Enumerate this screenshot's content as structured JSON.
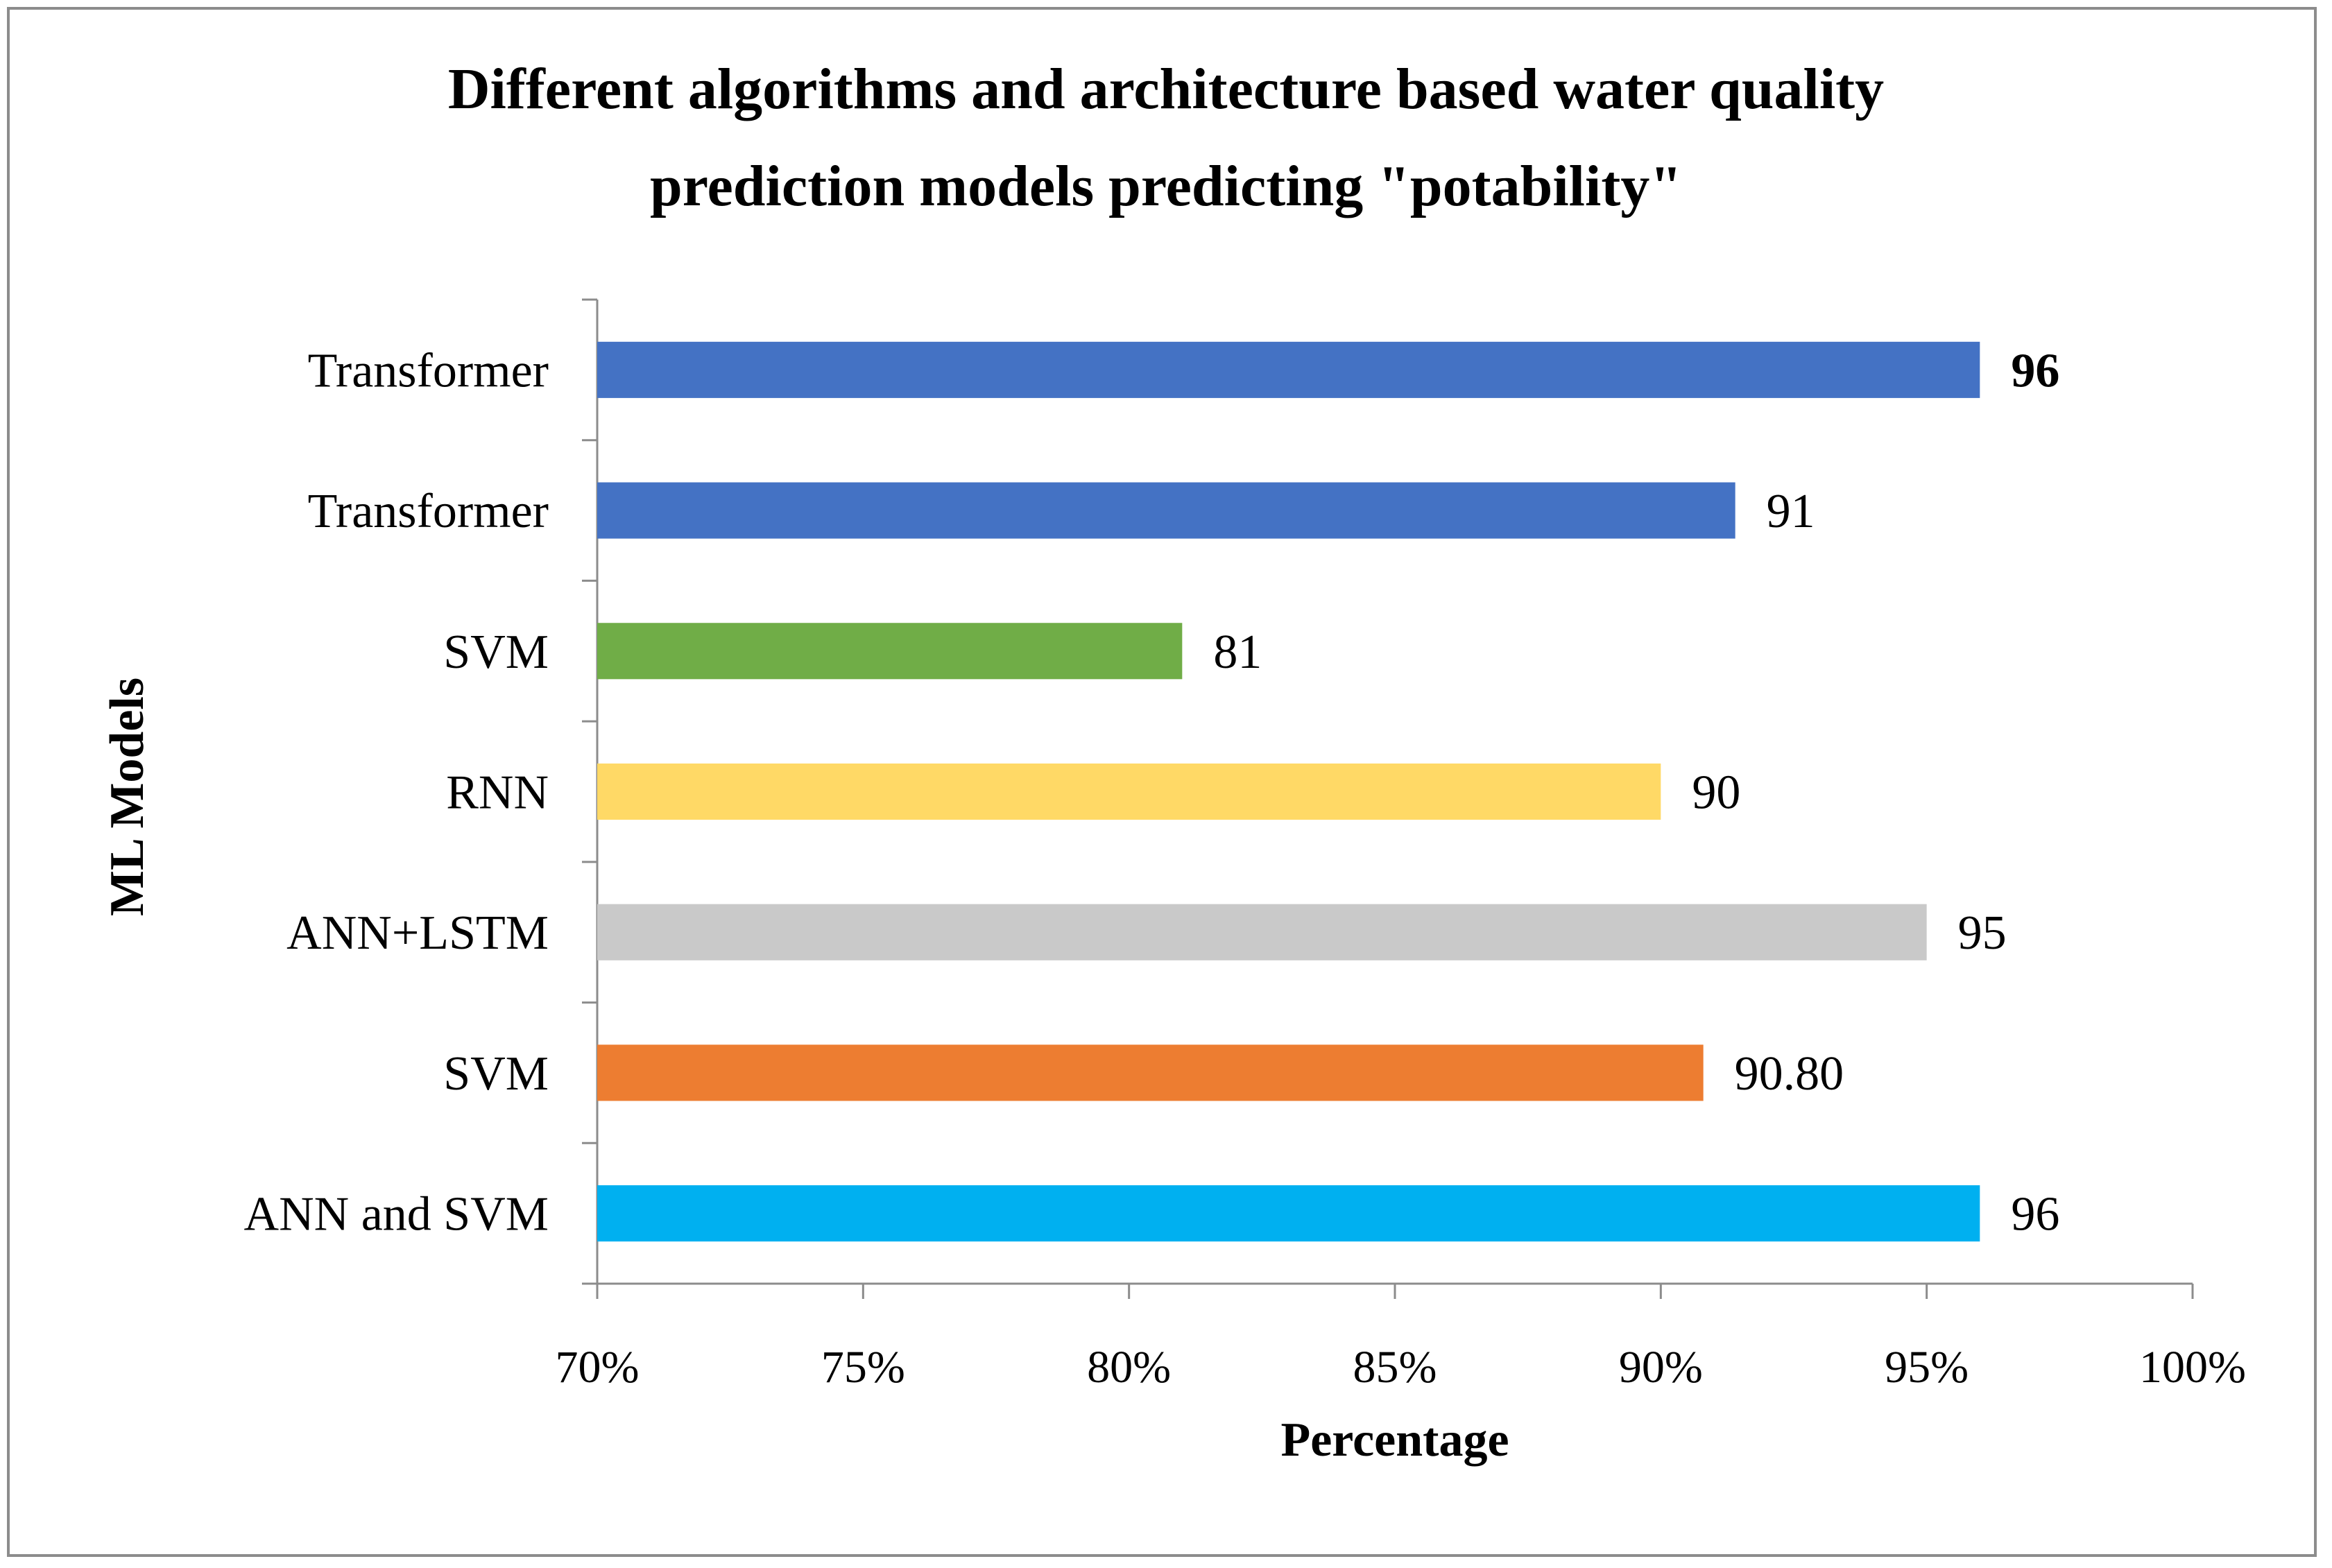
{
  "chart_data": {
    "type": "bar",
    "orientation": "horizontal",
    "title": "Different algorithms and architecture based water quality prediction models predicting \"potability\"",
    "title_lines": [
      "Different algorithms and architecture based water quality",
      "prediction models predicting \"potability\""
    ],
    "xlabel": "Percentage",
    "ylabel": "ML Models",
    "xlim": [
      70,
      100
    ],
    "x_ticks": [
      70,
      75,
      80,
      85,
      90,
      95,
      100
    ],
    "x_tick_labels": [
      "70%",
      "75%",
      "80%",
      "85%",
      "90%",
      "95%",
      "100%"
    ],
    "grid": false,
    "categories": [
      "Transformer",
      "Transformer",
      "SVM",
      "RNN",
      "ANN+LSTM",
      "SVM",
      "ANN and SVM"
    ],
    "values": [
      96,
      91.4,
      81,
      90,
      95,
      90.8,
      96
    ],
    "data_labels": [
      "96",
      "91",
      "81",
      "90",
      "95",
      "90.80",
      "96"
    ],
    "data_label_bold": [
      true,
      false,
      false,
      false,
      false,
      false,
      false
    ],
    "colors": [
      "#4472C4",
      "#4472C4",
      "#70AD47",
      "#FFD966",
      "#C9C9C9",
      "#ED7D31",
      "#00B0F0"
    ]
  }
}
